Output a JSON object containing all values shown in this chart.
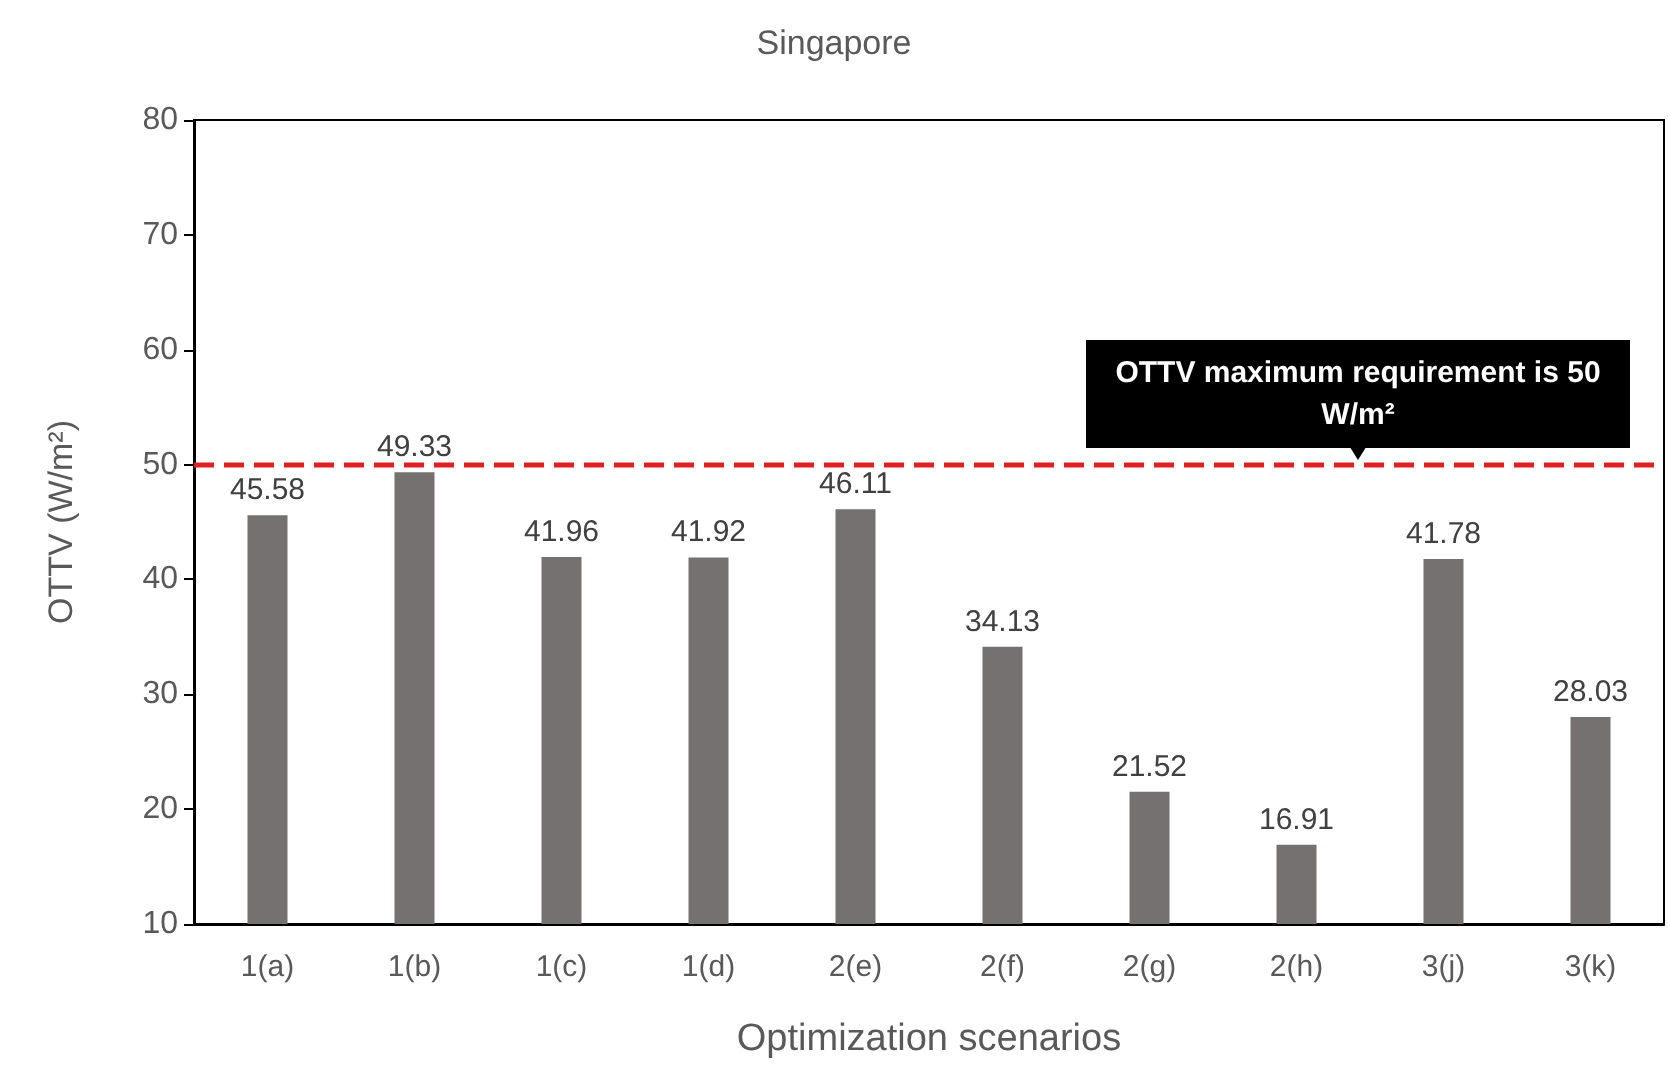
{
  "chart_data": {
    "type": "bar",
    "title": "Singapore",
    "xlabel": "Optimization scenarios",
    "ylabel": "OTTV (W/m²)",
    "categories": [
      "1(a)",
      "1(b)",
      "1(c)",
      "1(d)",
      "2(e)",
      "2(f)",
      "2(g)",
      "2(h)",
      "3(j)",
      "3(k)"
    ],
    "values": [
      45.58,
      49.33,
      41.96,
      41.92,
      46.11,
      34.13,
      21.52,
      16.91,
      41.78,
      28.03
    ],
    "color": "#767171",
    "ylim": [
      10,
      80
    ],
    "yticks": [
      10,
      20,
      30,
      40,
      50,
      60,
      70,
      80
    ],
    "grid": false,
    "data_labels": true,
    "ref_lines": [
      {
        "axis": "y",
        "value": 50,
        "label": "OTTV maximum requirement  is 50 W/m²",
        "color": "#e02020",
        "line_style": "dashed"
      }
    ]
  }
}
